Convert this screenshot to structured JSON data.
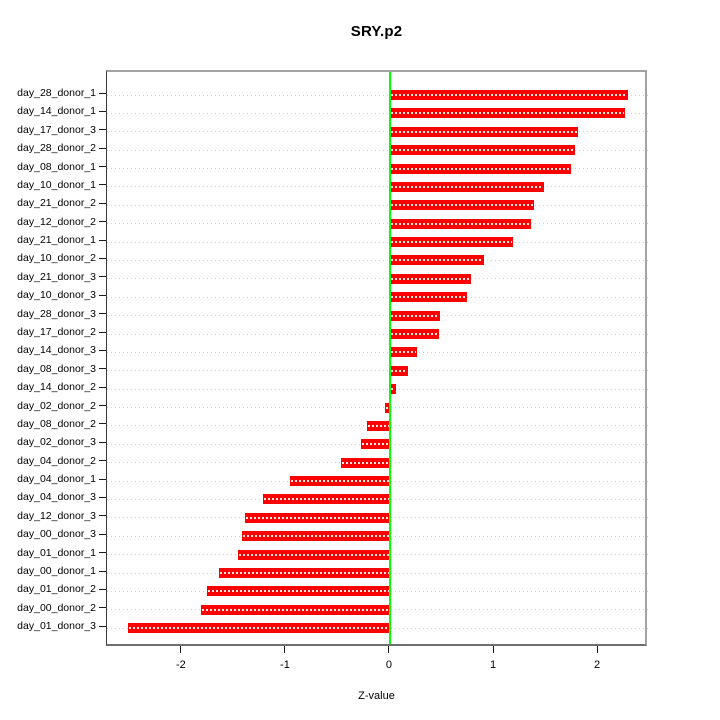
{
  "chart_data": {
    "type": "bar",
    "orientation": "horizontal",
    "title": "SRY.p2",
    "xlabel": "Z-value",
    "xlim": [
      -2.72,
      2.48
    ],
    "xticks": [
      -2,
      -1,
      0,
      1,
      2
    ],
    "grid": "horizontal-dotted",
    "legend": "none",
    "bar_color": "#ff0000",
    "bar_dot_color": "#ffffff",
    "zero_line_color": "#00ff00",
    "grid_color": "#cccccc",
    "categories": [
      "day_28_donor_1",
      "day_14_donor_1",
      "day_17_donor_3",
      "day_28_donor_2",
      "day_08_donor_1",
      "day_10_donor_1",
      "day_21_donor_2",
      "day_12_donor_2",
      "day_21_donor_1",
      "day_10_donor_2",
      "day_21_donor_3",
      "day_10_donor_3",
      "day_28_donor_3",
      "day_17_donor_2",
      "day_14_donor_3",
      "day_08_donor_3",
      "day_14_donor_2",
      "day_02_donor_2",
      "day_08_donor_2",
      "day_02_donor_3",
      "day_04_donor_2",
      "day_04_donor_1",
      "day_04_donor_3",
      "day_12_donor_3",
      "day_00_donor_3",
      "day_01_donor_1",
      "day_00_donor_1",
      "day_01_donor_2",
      "day_00_donor_2",
      "day_01_donor_3"
    ],
    "values": [
      2.29,
      2.26,
      1.81,
      1.78,
      1.74,
      1.48,
      1.38,
      1.36,
      1.18,
      0.9,
      0.78,
      0.74,
      0.48,
      0.47,
      0.26,
      0.17,
      0.06,
      -0.05,
      -0.22,
      -0.28,
      -0.47,
      -0.96,
      -1.22,
      -1.39,
      -1.42,
      -1.46,
      -1.64,
      -1.76,
      -1.82,
      -2.52
    ]
  }
}
